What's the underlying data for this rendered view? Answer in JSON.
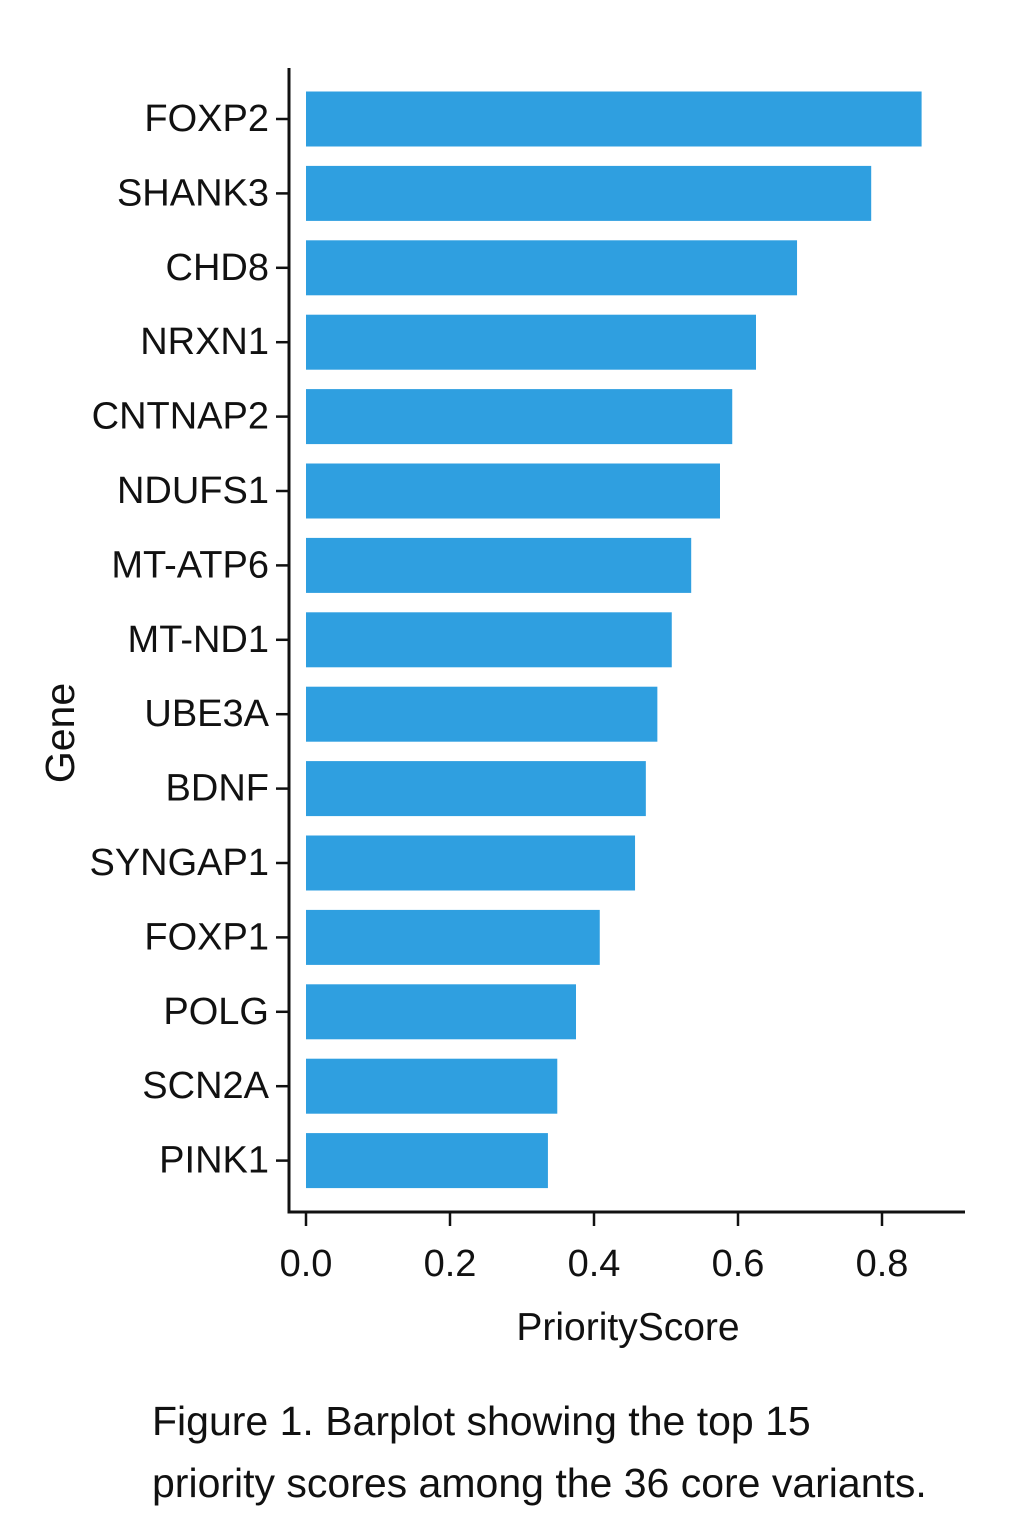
{
  "chart_data": {
    "type": "bar",
    "orientation": "horizontal",
    "categories": [
      "FOXP2",
      "SHANK3",
      "CHD8",
      "NRXN1",
      "CNTNAP2",
      "NDUFS1",
      "MT-ATP6",
      "MT-ND1",
      "UBE3A",
      "BDNF",
      "SYNGAP1",
      "FOXP1",
      "POLG",
      "SCN2A",
      "PINK1"
    ],
    "values": [
      0.855,
      0.785,
      0.682,
      0.625,
      0.592,
      0.575,
      0.535,
      0.508,
      0.488,
      0.472,
      0.457,
      0.408,
      0.375,
      0.349,
      0.336
    ],
    "xlabel": "PriorityScore",
    "ylabel": "Gene",
    "xlim": [
      0,
      0.92
    ],
    "xticks": [
      0.0,
      0.2,
      0.4,
      0.6,
      0.8
    ],
    "xtick_labels": [
      "0.0",
      "0.2",
      "0.4",
      "0.6",
      "0.8"
    ],
    "bar_color": "#2f9fe0",
    "grid": false,
    "legend": "none"
  },
  "caption": {
    "line1": "Figure 1. Barplot showing the top 15",
    "line2": "priority scores among the 36 core variants."
  }
}
